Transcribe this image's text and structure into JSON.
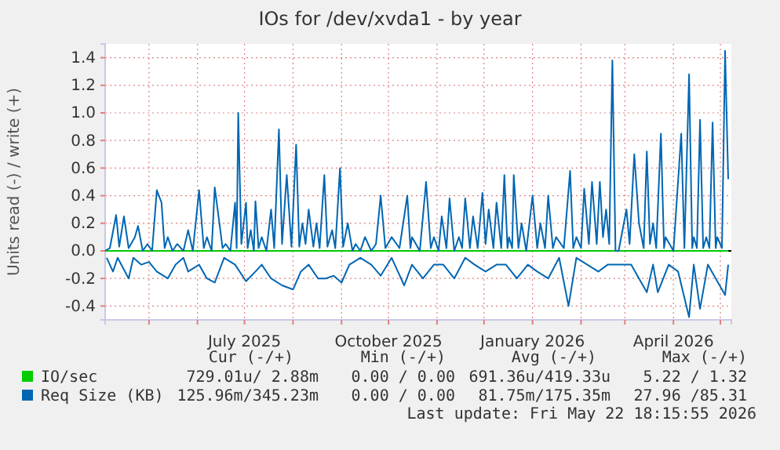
{
  "chart_data": {
    "type": "line",
    "title": "IOs for /dev/xvda1 - by year",
    "ylabel": "Units read (-) / write (+)",
    "xlim": [
      "2025-04-03",
      "2026-05-08"
    ],
    "ylim": [
      -0.5,
      1.5
    ],
    "xticks": [
      {
        "value": "2025-05-01",
        "label": null
      },
      {
        "value": "2025-06-01",
        "label": null
      },
      {
        "value": "2025-07-01",
        "label": "July 2025"
      },
      {
        "value": "2025-08-01",
        "label": null
      },
      {
        "value": "2025-09-01",
        "label": null
      },
      {
        "value": "2025-10-01",
        "label": "October 2025"
      },
      {
        "value": "2025-11-01",
        "label": null
      },
      {
        "value": "2025-12-01",
        "label": null
      },
      {
        "value": "2026-01-01",
        "label": "January 2026"
      },
      {
        "value": "2026-02-01",
        "label": null
      },
      {
        "value": "2026-03-01",
        "label": null
      },
      {
        "value": "2026-04-01",
        "label": "April 2026"
      },
      {
        "value": "2026-05-01",
        "label": null
      }
    ],
    "yticks": [
      {
        "value": -0.4,
        "label": "-0.4"
      },
      {
        "value": -0.2,
        "label": "-0.2"
      },
      {
        "value": 0,
        "label": "0.0"
      },
      {
        "value": 0.2,
        "label": "0.2"
      },
      {
        "value": 0.4,
        "label": "0.4"
      },
      {
        "value": 0.6,
        "label": "0.6"
      },
      {
        "value": 0.8,
        "label": "0.8"
      },
      {
        "value": 1.0,
        "label": "1.0"
      },
      {
        "value": 1.2,
        "label": "1.2"
      },
      {
        "value": 1.4,
        "label": "1.4"
      }
    ],
    "grid": true,
    "legend": "bottom",
    "ref_lines": [
      {
        "axis": "y",
        "value": 0,
        "color": "#000000"
      }
    ],
    "series": [
      {
        "name": "IO/sec",
        "color": "#00cc00",
        "x": [
          "2025-04-03",
          "2026-05-06"
        ],
        "values": [
          0,
          0
        ]
      },
      {
        "name": "Req Size (KB)",
        "color": "#0066b3",
        "x": [
          "2025-04-03",
          "2025-04-06",
          "2025-04-10",
          "2025-04-12",
          "2025-04-15",
          "2025-04-18",
          "2025-04-22",
          "2025-04-24",
          "2025-04-27",
          "2025-04-30",
          "2025-05-03",
          "2025-05-06",
          "2025-05-09",
          "2025-05-11",
          "2025-05-13",
          "2025-05-16",
          "2025-05-19",
          "2025-05-23",
          "2025-05-26",
          "2025-05-29",
          "2025-06-02",
          "2025-06-05",
          "2025-06-07",
          "2025-06-10",
          "2025-06-12",
          "2025-06-15",
          "2025-06-17",
          "2025-06-19",
          "2025-06-22",
          "2025-06-25",
          "2025-06-26",
          "2025-06-27",
          "2025-06-29",
          "2025-07-02",
          "2025-07-03",
          "2025-07-05",
          "2025-07-07",
          "2025-07-08",
          "2025-07-10",
          "2025-07-12",
          "2025-07-15",
          "2025-07-18",
          "2025-07-20",
          "2025-07-23",
          "2025-07-25",
          "2025-07-28",
          "2025-07-31",
          "2025-08-03",
          "2025-08-05",
          "2025-08-07",
          "2025-08-09",
          "2025-08-11",
          "2025-08-14",
          "2025-08-16",
          "2025-08-18",
          "2025-08-21",
          "2025-08-23",
          "2025-08-26",
          "2025-08-28",
          "2025-08-31",
          "2025-09-02",
          "2025-09-05",
          "2025-09-08",
          "2025-09-10",
          "2025-09-13",
          "2025-09-16",
          "2025-09-20",
          "2025-09-23",
          "2025-09-26",
          "2025-09-29",
          "2025-10-03",
          "2025-10-08",
          "2025-10-13",
          "2025-10-15",
          "2025-10-16",
          "2025-10-21",
          "2025-10-25",
          "2025-10-28",
          "2025-10-30",
          "2025-11-02",
          "2025-11-04",
          "2025-11-07",
          "2025-11-09",
          "2025-11-12",
          "2025-11-15",
          "2025-11-17",
          "2025-11-19",
          "2025-11-22",
          "2025-11-24",
          "2025-11-27",
          "2025-11-30",
          "2025-12-02",
          "2025-12-04",
          "2025-12-07",
          "2025-12-09",
          "2025-12-12",
          "2025-12-14",
          "2025-12-16",
          "2025-12-17",
          "2025-12-19",
          "2025-12-20",
          "2025-12-23",
          "2025-12-25",
          "2025-12-28",
          "2026-01-01",
          "2026-01-04",
          "2026-01-06",
          "2026-01-09",
          "2026-01-11",
          "2026-01-14",
          "2026-01-16",
          "2026-01-21",
          "2026-01-25",
          "2026-01-27",
          "2026-01-29",
          "2026-02-01",
          "2026-02-03",
          "2026-02-06",
          "2026-02-08",
          "2026-02-11",
          "2026-02-13",
          "2026-02-15",
          "2026-02-17",
          "2026-02-19",
          "2026-02-21",
          "2026-02-23",
          "2026-02-25",
          "2026-03-02",
          "2026-03-04",
          "2026-03-07",
          "2026-03-10",
          "2026-03-13",
          "2026-03-15",
          "2026-03-17",
          "2026-03-19",
          "2026-03-21",
          "2026-03-24",
          "2026-03-26",
          "2026-03-27",
          "2026-04-01",
          "2026-04-06",
          "2026-04-08",
          "2026-04-11",
          "2026-04-13",
          "2026-04-14",
          "2026-04-16",
          "2026-04-18",
          "2026-04-20",
          "2026-04-22",
          "2026-04-24",
          "2026-04-26",
          "2026-04-28",
          "2026-04-29",
          "2026-05-02",
          "2026-05-04",
          "2026-05-06"
        ],
        "values": [
          0.0,
          0.02,
          0.26,
          0.03,
          0.25,
          0.02,
          0.1,
          0.18,
          0.0,
          0.05,
          0.0,
          0.44,
          0.35,
          0.02,
          0.1,
          0.0,
          0.05,
          0.0,
          0.15,
          0.0,
          0.44,
          0.02,
          0.1,
          0.0,
          0.46,
          0.2,
          0.02,
          0.05,
          0.0,
          0.35,
          0.02,
          1.0,
          0.05,
          0.35,
          0.02,
          0.15,
          0.0,
          0.36,
          0.02,
          0.1,
          0.0,
          0.3,
          0.02,
          0.88,
          0.05,
          0.55,
          0.03,
          0.77,
          0.03,
          0.2,
          0.05,
          0.3,
          0.03,
          0.2,
          0.02,
          0.55,
          0.03,
          0.15,
          0.02,
          0.6,
          0.03,
          0.2,
          0.0,
          0.05,
          0.0,
          0.1,
          0.0,
          0.05,
          0.4,
          0.02,
          0.1,
          0.02,
          0.4,
          0.02,
          0.1,
          0.0,
          0.5,
          0.02,
          0.1,
          0.0,
          0.25,
          0.02,
          0.38,
          0.0,
          0.1,
          0.02,
          0.38,
          0.02,
          0.25,
          0.02,
          0.42,
          0.05,
          0.3,
          0.02,
          0.35,
          0.02,
          0.55,
          0.02,
          0.1,
          0.02,
          0.55,
          0.02,
          0.2,
          0.0,
          0.4,
          0.02,
          0.2,
          0.02,
          0.4,
          0.02,
          0.1,
          0.02,
          0.58,
          0.02,
          0.1,
          0.02,
          0.45,
          0.05,
          0.5,
          0.05,
          0.5,
          0.1,
          0.3,
          0.05,
          1.38,
          0.0,
          0.0,
          0.3,
          0.05,
          0.7,
          0.2,
          0.02,
          0.72,
          0.05,
          0.2,
          0.02,
          0.85,
          0.02,
          0.1,
          0.0,
          0.85,
          0.02,
          1.28,
          0.02,
          0.1,
          0.02,
          0.95,
          0.02,
          0.1,
          0.02,
          0.93,
          0.02,
          0.1,
          0.02,
          1.45,
          0.52
        ]
      },
      {
        "color": "#0066b3",
        "x": [
          "2025-04-04",
          "2025-04-08",
          "2025-04-11",
          "2025-04-18",
          "2025-04-21",
          "2025-04-26",
          "2025-05-01",
          "2025-05-06",
          "2025-05-13",
          "2025-05-18",
          "2025-05-23",
          "2025-05-26",
          "2025-06-02",
          "2025-06-07",
          "2025-06-12",
          "2025-06-18",
          "2025-06-25",
          "2025-07-02",
          "2025-07-08",
          "2025-07-12",
          "2025-07-18",
          "2025-07-25",
          "2025-08-01",
          "2025-08-06",
          "2025-08-11",
          "2025-08-17",
          "2025-08-22",
          "2025-08-27",
          "2025-09-01",
          "2025-09-06",
          "2025-09-13",
          "2025-09-20",
          "2025-09-26",
          "2025-10-03",
          "2025-10-11",
          "2025-10-16",
          "2025-10-23",
          "2025-10-30",
          "2025-11-05",
          "2025-11-12",
          "2025-11-19",
          "2025-11-25",
          "2025-12-02",
          "2025-12-09",
          "2025-12-15",
          "2025-12-22",
          "2025-12-29",
          "2026-01-04",
          "2026-01-11",
          "2026-01-18",
          "2026-01-24",
          "2026-01-29",
          "2026-02-05",
          "2026-02-12",
          "2026-02-18",
          "2026-02-25",
          "2026-03-05",
          "2026-03-10",
          "2026-03-15",
          "2026-03-19",
          "2026-03-22",
          "2026-03-29",
          "2026-04-04",
          "2026-04-11",
          "2026-04-14",
          "2026-04-18",
          "2026-04-23",
          "2026-04-28",
          "2026-05-04",
          "2026-05-06"
        ],
        "values": [
          -0.05,
          -0.15,
          -0.05,
          -0.2,
          -0.05,
          -0.1,
          -0.08,
          -0.15,
          -0.2,
          -0.1,
          -0.05,
          -0.15,
          -0.1,
          -0.2,
          -0.23,
          -0.05,
          -0.1,
          -0.22,
          -0.15,
          -0.1,
          -0.2,
          -0.25,
          -0.28,
          -0.15,
          -0.1,
          -0.2,
          -0.2,
          -0.18,
          -0.23,
          -0.1,
          -0.05,
          -0.1,
          -0.18,
          -0.05,
          -0.25,
          -0.1,
          -0.2,
          -0.1,
          -0.1,
          -0.2,
          -0.05,
          -0.1,
          -0.15,
          -0.1,
          -0.1,
          -0.2,
          -0.1,
          -0.15,
          -0.2,
          -0.05,
          -0.4,
          -0.05,
          -0.1,
          -0.15,
          -0.1,
          -0.1,
          -0.1,
          -0.2,
          -0.3,
          -0.1,
          -0.3,
          -0.1,
          -0.15,
          -0.48,
          -0.1,
          -0.42,
          -0.1,
          -0.2,
          -0.32,
          -0.1
        ]
      }
    ],
    "annotations": [
      "Cur (-/+)",
      "Min (-/+)",
      "Avg (-/+)",
      "Max (-/+)",
      "729.01u/ 2.88m",
      "0.00 / 0.00",
      "691.36u/419.33u",
      "5.22 / 1.32",
      "125.96m/345.23m",
      "0.00 / 0.00",
      "81.75m/175.35m",
      "27.96 /85.31",
      "Last update: Fri May 22 18:15:55 2026"
    ]
  }
}
